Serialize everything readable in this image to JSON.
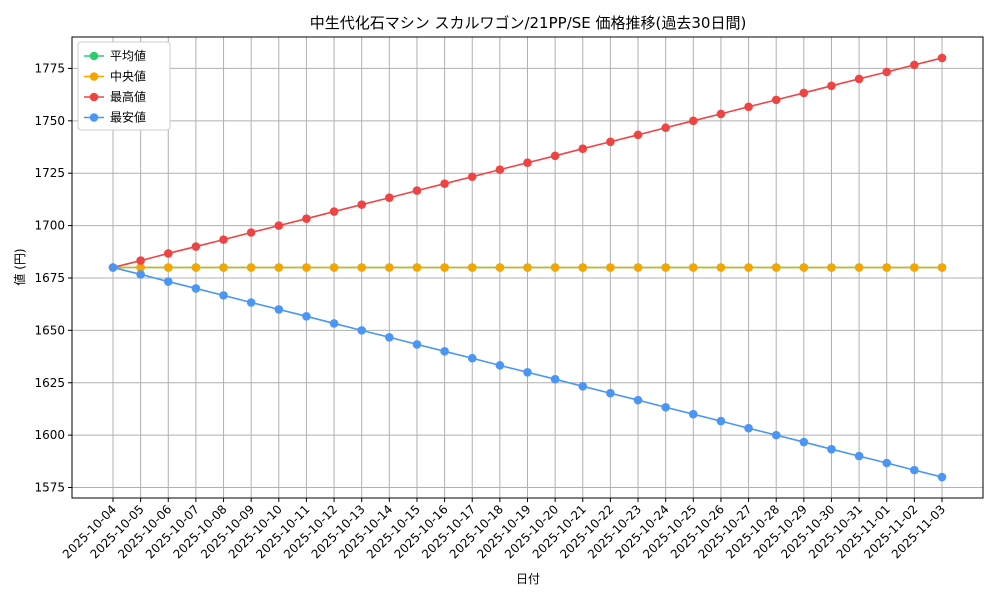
{
  "chart_data": {
    "type": "line",
    "title": "中生代化石マシン スカルワゴン/21PP/SE 価格推移(過去30日間)",
    "xlabel": "日付",
    "ylabel": "値 (円)",
    "ylim": [
      1570,
      1790
    ],
    "yticks": [
      1575,
      1600,
      1625,
      1650,
      1675,
      1700,
      1725,
      1750,
      1775
    ],
    "grid": true,
    "legend_position": "top-left",
    "categories": [
      "2025-10-04",
      "2025-10-05",
      "2025-10-06",
      "2025-10-07",
      "2025-10-08",
      "2025-10-09",
      "2025-10-10",
      "2025-10-11",
      "2025-10-12",
      "2025-10-13",
      "2025-10-14",
      "2025-10-15",
      "2025-10-16",
      "2025-10-17",
      "2025-10-18",
      "2025-10-19",
      "2025-10-20",
      "2025-10-21",
      "2025-10-22",
      "2025-10-23",
      "2025-10-24",
      "2025-10-25",
      "2025-10-26",
      "2025-10-27",
      "2025-10-28",
      "2025-10-29",
      "2025-10-30",
      "2025-10-31",
      "2025-11-01",
      "2025-11-02",
      "2025-11-03"
    ],
    "series": [
      {
        "name": "平均値",
        "color": "#2ecc71",
        "values": [
          1680,
          1680,
          1680,
          1680,
          1680,
          1680,
          1680,
          1680,
          1680,
          1680,
          1680,
          1680,
          1680,
          1680,
          1680,
          1680,
          1680,
          1680,
          1680,
          1680,
          1680,
          1680,
          1680,
          1680,
          1680,
          1680,
          1680,
          1680,
          1680,
          1680,
          1680
        ]
      },
      {
        "name": "中央値",
        "color": "#f5a500",
        "values": [
          1680,
          1680,
          1680,
          1680,
          1680,
          1680,
          1680,
          1680,
          1680,
          1680,
          1680,
          1680,
          1680,
          1680,
          1680,
          1680,
          1680,
          1680,
          1680,
          1680,
          1680,
          1680,
          1680,
          1680,
          1680,
          1680,
          1680,
          1680,
          1680,
          1680,
          1680
        ]
      },
      {
        "name": "最高値",
        "color": "#ef4444",
        "values": [
          1680,
          1683.3,
          1686.7,
          1690,
          1693.3,
          1696.7,
          1700,
          1703.3,
          1706.7,
          1710,
          1713.3,
          1716.7,
          1720,
          1723.3,
          1726.7,
          1730,
          1733.3,
          1736.7,
          1740,
          1743.3,
          1746.7,
          1750,
          1753.3,
          1756.7,
          1760,
          1763.3,
          1766.7,
          1770,
          1773.3,
          1776.7,
          1780
        ]
      },
      {
        "name": "最安値",
        "color": "#4b96f5",
        "values": [
          1680,
          1676.7,
          1673.3,
          1670,
          1666.7,
          1663.3,
          1660,
          1656.7,
          1653.3,
          1650,
          1646.7,
          1643.3,
          1640,
          1636.7,
          1633.3,
          1630,
          1626.7,
          1623.3,
          1620,
          1616.7,
          1613.3,
          1610,
          1606.7,
          1603.3,
          1600,
          1596.7,
          1593.3,
          1590,
          1586.7,
          1583.3,
          1580
        ]
      }
    ]
  }
}
